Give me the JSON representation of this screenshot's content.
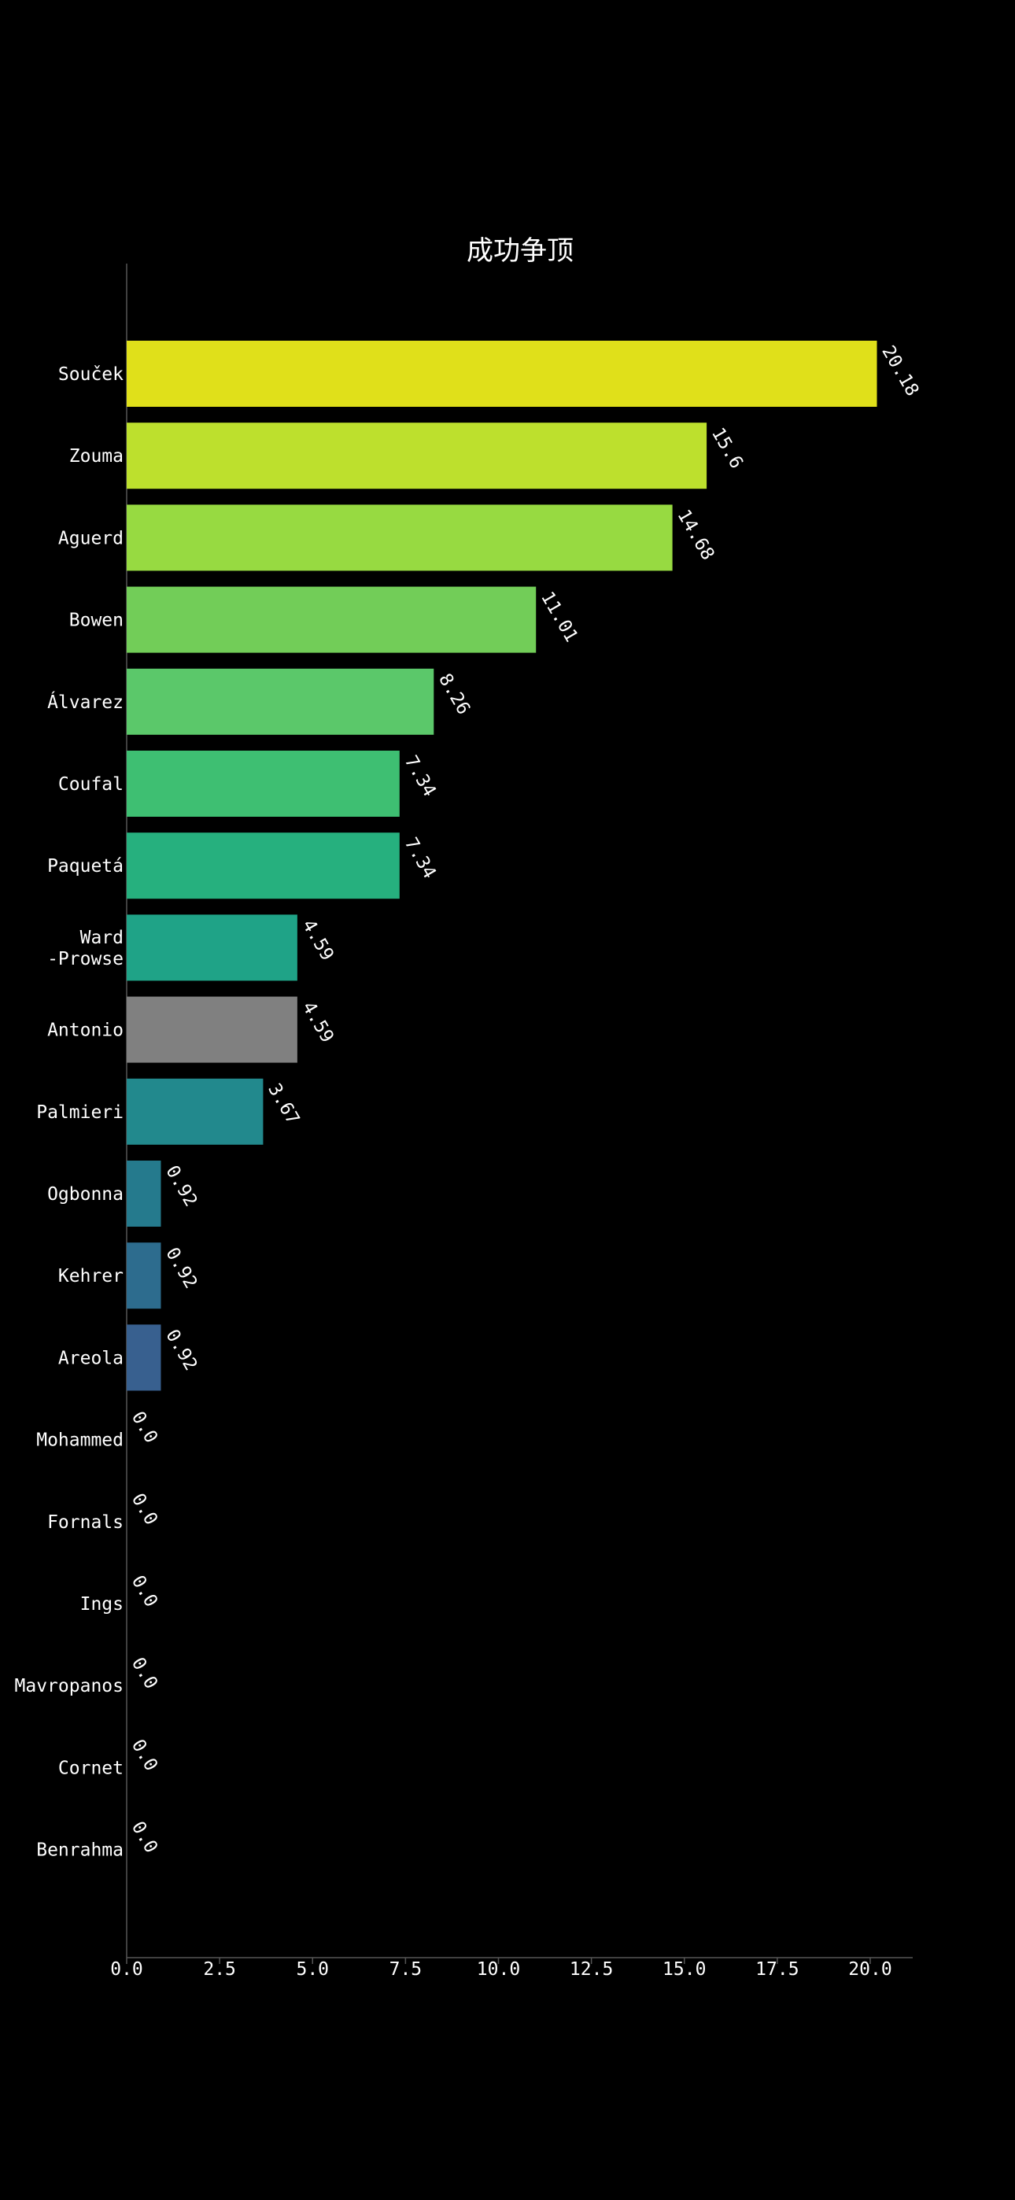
{
  "chart_data": {
    "type": "bar",
    "orientation": "horizontal",
    "title": "成功争顶",
    "xlabel": "",
    "ylabel": "",
    "xlim": [
      0,
      21.2
    ],
    "x_ticks": [
      "0.0",
      "2.5",
      "5.0",
      "7.5",
      "10.0",
      "12.5",
      "15.0",
      "17.5",
      "20.0"
    ],
    "grid": false,
    "legend": "none",
    "categories": [
      "Souček",
      "Zouma",
      "Aguerd",
      "Bowen",
      "Álvarez",
      "Coufal",
      "Paquetá",
      "Ward\n-Prowse",
      "Antonio",
      "Palmieri",
      "Ogbonna",
      "Kehrer",
      "Areola",
      "Mohammed",
      "Fornals",
      "Ings",
      "Mavropanos",
      "Cornet",
      "Benrahma"
    ],
    "values": [
      20.18,
      15.6,
      14.68,
      11.01,
      8.26,
      7.34,
      7.34,
      4.59,
      4.59,
      3.67,
      0.92,
      0.92,
      0.92,
      0.0,
      0.0,
      0.0,
      0.0,
      0.0,
      0.0
    ],
    "value_labels": [
      "20.18",
      "15.6",
      "14.68",
      "11.01",
      "8.26",
      "7.34",
      "7.34",
      "4.59",
      "4.59",
      "3.67",
      "0.92",
      "0.92",
      "0.92",
      "0.0",
      "0.0",
      "0.0",
      "0.0",
      "0.0",
      "0.0"
    ],
    "colors": [
      "#e0e01a",
      "#bde02d",
      "#97da41",
      "#72cd58",
      "#5bc86a",
      "#3ebf72",
      "#26b07e",
      "#1fa387",
      "#808080",
      "#22898d",
      "#257a8d",
      "#2d6c8e",
      "#38608f",
      "#444444",
      "#444444",
      "#444444",
      "#444444",
      "#444444",
      "#444444"
    ]
  }
}
